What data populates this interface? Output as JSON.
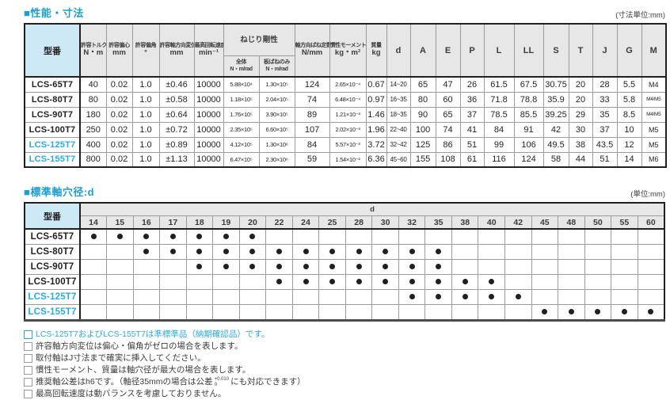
{
  "colors": {
    "accent_blue": "#29abe2",
    "title_blue": "#1a9fd4",
    "header_blue_bg": "#cde9f6",
    "header_gray_bg": "#e7e7e7",
    "dot": "#231f20"
  },
  "sections": [
    {
      "title": "■性能・寸法",
      "unit": "(寸法単位:mm)"
    },
    {
      "title": "■標準軸穴径:d",
      "unit": "(単位:mm)"
    }
  ],
  "spec_table": {
    "model_header": "型番",
    "left_columns": [
      {
        "label": "許容トルク",
        "unit": "N・m"
      },
      {
        "label": "許容偏心",
        "unit": "mm"
      },
      {
        "label": "許容偏角",
        "unit": "°"
      },
      {
        "label": "許容軸方向変位",
        "unit": "mm"
      },
      {
        "label": "最高回転速度",
        "unit": "min⁻¹"
      }
    ],
    "torsion_group": {
      "label": "ねじり剛性",
      "sub": [
        {
          "label": "全体",
          "unit": "N・m/rad"
        },
        {
          "label": "板ばねのみ",
          "unit": "N・m/rad"
        }
      ]
    },
    "mid_columns": [
      {
        "label": "軸方向ばね定数",
        "unit": "N/mm"
      },
      {
        "label": "慣性モーメント",
        "unit": "kg・m²"
      },
      {
        "label": "質量",
        "unit": "kg"
      }
    ],
    "dim_columns": [
      "d",
      "A",
      "E",
      "P",
      "L",
      "LL",
      "S",
      "T",
      "J",
      "G",
      "M"
    ],
    "rows": [
      {
        "model": "LCS-65T7",
        "accent": false,
        "values": [
          "40",
          "0.02",
          "1.0",
          "±0.46",
          "10000",
          "5.88×10⁴",
          "1.30×10⁵",
          "124",
          "2.65×10⁻⁴",
          "0.67",
          "14~20",
          "65",
          "47",
          "26",
          "61.5",
          "67.5",
          "30.75",
          "20",
          "28",
          "5.5",
          "M4"
        ]
      },
      {
        "model": "LCS-80T7",
        "accent": false,
        "values": [
          "80",
          "0.02",
          "1.0",
          "±0.58",
          "10000",
          "1.18×10⁵",
          "2.04×10⁵",
          "74",
          "6.48×10⁻⁴",
          "0.97",
          "16~35",
          "80",
          "60",
          "36",
          "71.8",
          "78.8",
          "35.9",
          "20",
          "33",
          "5.8",
          "M4/M5"
        ]
      },
      {
        "model": "LCS-90T7",
        "accent": false,
        "values": [
          "180",
          "0.02",
          "1.0",
          "±0.64",
          "10000",
          "1.76×10⁵",
          "3.90×10⁵",
          "89",
          "1.21×10⁻³",
          "1.46",
          "18~35",
          "90",
          "65",
          "37",
          "78.5",
          "85.5",
          "39.25",
          "29",
          "35",
          "8.5",
          "M4/M5"
        ]
      },
      {
        "model": "LCS-100T7",
        "accent": false,
        "values": [
          "250",
          "0.02",
          "1.0",
          "±0.72",
          "10000",
          "2.35×10⁵",
          "6.60×10⁵",
          "107",
          "2.02×10⁻³",
          "1.96",
          "22~40",
          "100",
          "74",
          "41",
          "84",
          "91",
          "42",
          "30",
          "37",
          "10",
          "M5"
        ]
      },
      {
        "model": "LCS-125T7",
        "accent": true,
        "values": [
          "400",
          "0.02",
          "1.0",
          "±0.89",
          "10000",
          "4.12×10⁵",
          "1.30×10⁶",
          "84",
          "5.57×10⁻³",
          "3.72",
          "32~42",
          "125",
          "86",
          "51",
          "99",
          "106",
          "49.5",
          "38",
          "43.5",
          "12",
          "M5"
        ]
      },
      {
        "model": "LCS-155T7",
        "accent": true,
        "values": [
          "800",
          "0.02",
          "1.0",
          "±1.13",
          "10000",
          "6.47×10⁵",
          "2.30×10⁶",
          "59",
          "1.54×10⁻²",
          "6.36",
          "45~60",
          "155",
          "108",
          "61",
          "116",
          "124",
          "58",
          "44",
          "51",
          "14",
          "M6"
        ]
      }
    ]
  },
  "bore_table": {
    "model_header": "型番",
    "group_header": "d",
    "columns": [
      "14",
      "15",
      "16",
      "17",
      "18",
      "19",
      "20",
      "22",
      "24",
      "25",
      "28",
      "30",
      "32",
      "35",
      "38",
      "40",
      "42",
      "45",
      "48",
      "50",
      "55",
      "60"
    ],
    "rows": [
      {
        "model": "LCS-65T7",
        "accent": false,
        "bores": [
          "14",
          "15",
          "16",
          "17",
          "18",
          "19",
          "20"
        ]
      },
      {
        "model": "LCS-80T7",
        "accent": false,
        "bores": [
          "16",
          "17",
          "18",
          "19",
          "20",
          "22",
          "24",
          "25",
          "28",
          "30",
          "32",
          "35"
        ]
      },
      {
        "model": "LCS-90T7",
        "accent": false,
        "bores": [
          "18",
          "19",
          "20",
          "22",
          "24",
          "25",
          "28",
          "30",
          "32",
          "35"
        ]
      },
      {
        "model": "LCS-100T7",
        "accent": false,
        "bores": [
          "22",
          "24",
          "25",
          "28",
          "30",
          "32",
          "35",
          "38",
          "40"
        ]
      },
      {
        "model": "LCS-125T7",
        "accent": true,
        "bores": [
          "32",
          "35",
          "38",
          "40",
          "42"
        ]
      },
      {
        "model": "LCS-155T7",
        "accent": true,
        "bores": [
          "45",
          "48",
          "50",
          "55",
          "60"
        ]
      }
    ]
  },
  "footnotes": [
    {
      "accent": true,
      "text": "LCS-125T7およびLCS-155T7は準標準品（納期確認品）です。"
    },
    {
      "accent": false,
      "text": "許容軸方向変位は偏心・偏角がゼロの場合を表します。"
    },
    {
      "accent": false,
      "text": "取付軸はJ寸法まで確実に挿入してください。"
    },
    {
      "accent": false,
      "text": "慣性モーメント、質量は軸穴径が最大の場合を表します。"
    },
    {
      "accent": false,
      "pre": "推奨軸公差はh6です。（軸径35mmの場合は公差",
      "sup": "+0.010",
      "sub": "0",
      "post": "にも対応できます）"
    },
    {
      "accent": false,
      "text": "最高回転速度は動バランスを考慮しておりません。"
    }
  ]
}
